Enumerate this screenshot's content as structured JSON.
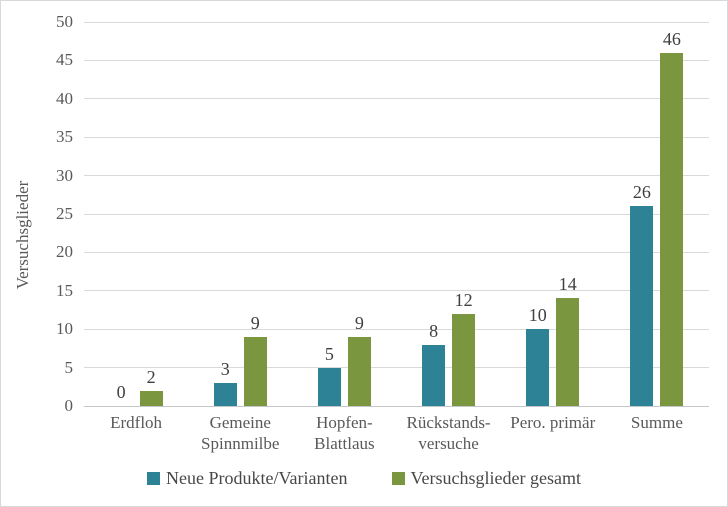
{
  "chart_data": {
    "type": "bar",
    "title": "",
    "xlabel": "",
    "ylabel": "Versuchsglieder",
    "ylim": [
      0,
      50
    ],
    "ytick_step": 5,
    "yticks": [
      0,
      5,
      10,
      15,
      20,
      25,
      30,
      35,
      40,
      45,
      50
    ],
    "grid": true,
    "legend_position": "bottom",
    "categories": [
      "Erdfloh",
      "Gemeine Spinnmilbe",
      "Hopfen-Blattlaus",
      "Rückstands-versuche",
      "Pero. primär",
      "Summe"
    ],
    "category_display_lines": [
      [
        "Erdfloh"
      ],
      [
        "Gemeine",
        "Spinnmilbe"
      ],
      [
        "Hopfen-",
        "Blattlaus"
      ],
      [
        "Rückstands-",
        "versuche"
      ],
      [
        "Pero. primär"
      ],
      [
        "Summe"
      ]
    ],
    "series": [
      {
        "name": "Neue Produkte/Varianten",
        "color": "#2e8296",
        "values": [
          0,
          3,
          5,
          8,
          10,
          26
        ]
      },
      {
        "name": "Versuchsglieder gesamt",
        "color": "#7a9740",
        "values": [
          2,
          9,
          9,
          12,
          14,
          46
        ]
      }
    ]
  },
  "colors": {
    "gridline": "#d9d9d9",
    "axis_line": "#c3c7ca",
    "tick_text": "#595959",
    "data_label_text": "#404040",
    "legend_text": "#474747",
    "frame_border": "#d6d9dc",
    "background": "#ffffff"
  }
}
